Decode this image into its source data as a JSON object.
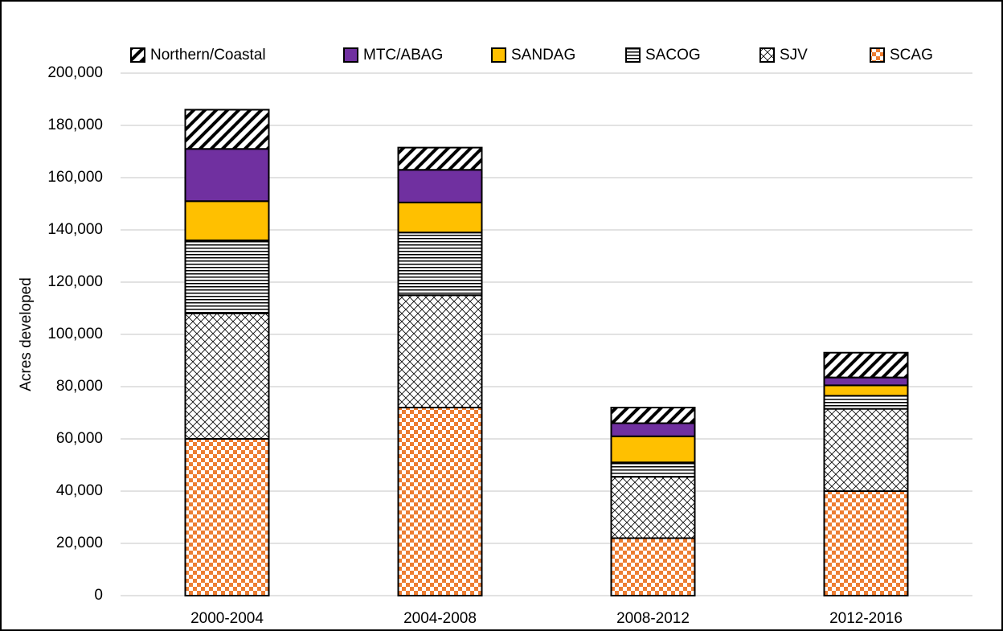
{
  "chart_data": {
    "type": "stacked-bar",
    "y_label": "Acres developed",
    "categories": [
      "2000-2004",
      "2004-2008",
      "2008-2012",
      "2012-2016"
    ],
    "series": [
      {
        "name": "Northern/Coastal",
        "color": "#000000",
        "pattern": "diagonal",
        "values": [
          15000,
          8500,
          6000,
          9500
        ]
      },
      {
        "name": "MTC/ABAG",
        "color": "#7030a0",
        "pattern": "solid",
        "values": [
          20000,
          12500,
          5000,
          3000
        ]
      },
      {
        "name": "SANDAG",
        "color": "#ffc000",
        "pattern": "solid",
        "values": [
          15000,
          11500,
          10000,
          4000
        ]
      },
      {
        "name": "SACOG",
        "color": "#000000",
        "pattern": "horizontal",
        "values": [
          28000,
          24000,
          5500,
          5000
        ]
      },
      {
        "name": "SJV",
        "color": "#000000",
        "pattern": "crosshatch",
        "values": [
          48000,
          43000,
          23500,
          31500
        ]
      },
      {
        "name": "SCAG",
        "color": "#ed7d31",
        "pattern": "checker",
        "values": [
          60000,
          72000,
          22000,
          40000
        ]
      }
    ],
    "stack_order": "bottom-up from last series",
    "ylim": [
      0,
      200000
    ],
    "yticks": [
      {
        "value": 0,
        "label": "0"
      },
      {
        "value": 20000,
        "label": "20,000"
      },
      {
        "value": 40000,
        "label": "40,000"
      },
      {
        "value": 60000,
        "label": "60,000"
      },
      {
        "value": 80000,
        "label": "80,000"
      },
      {
        "value": 100000,
        "label": "100,000"
      },
      {
        "value": 120000,
        "label": "120,000"
      },
      {
        "value": 140000,
        "label": "140,000"
      },
      {
        "value": 160000,
        "label": "160,000"
      },
      {
        "value": 180000,
        "label": "180,000"
      },
      {
        "value": 200000,
        "label": "200,000"
      }
    ],
    "grid": true
  }
}
